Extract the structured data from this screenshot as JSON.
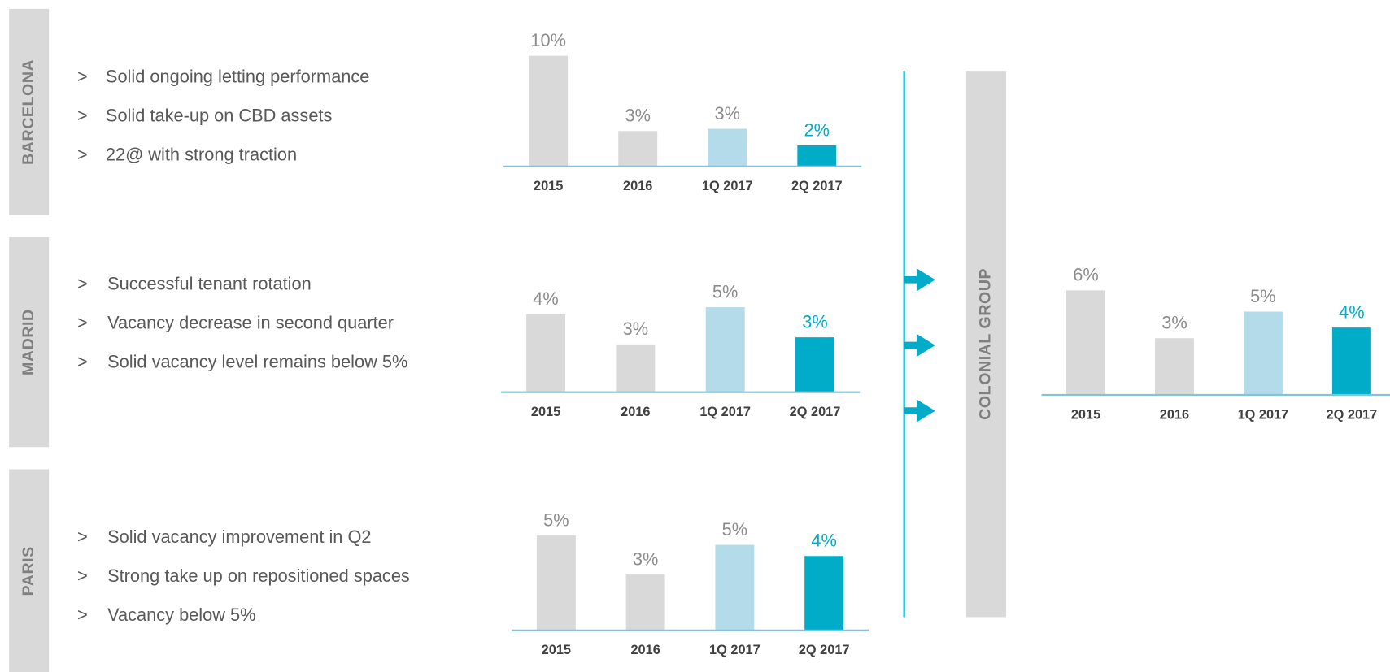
{
  "chart_data": [
    {
      "type": "bar",
      "title": "BARCELONA",
      "notes": [
        "Solid ongoing letting performance",
        "Solid take-up on CBD assets",
        "22@ with strong traction"
      ],
      "categories": [
        "2015",
        "2016",
        "1Q 2017",
        "2Q 2017"
      ],
      "values": [
        10,
        3.2,
        3.4,
        1.9
      ],
      "value_labels": [
        "10%",
        "3%",
        "3%",
        "2%"
      ],
      "colors": [
        "#d9d9d9",
        "#d9d9d9",
        "#b3dbe9",
        "#00acc8"
      ],
      "label_colors": [
        "#8c8c8c",
        "#8c8c8c",
        "#8c8c8c",
        "#00acc8"
      ],
      "ylim": [
        0,
        10
      ]
    },
    {
      "type": "bar",
      "title": "MADRID",
      "notes": [
        "Successful tenant rotation",
        "Vacancy decrease in second quarter",
        "Solid vacancy level remains below 5%"
      ],
      "categories": [
        "2015",
        "2016",
        "1Q 2017",
        "2Q 2017"
      ],
      "values": [
        4.4,
        2.7,
        4.8,
        3.1
      ],
      "value_labels": [
        "4%",
        "3%",
        "5%",
        "3%"
      ],
      "colors": [
        "#d9d9d9",
        "#d9d9d9",
        "#b3dbe9",
        "#00acc8"
      ],
      "label_colors": [
        "#8c8c8c",
        "#8c8c8c",
        "#8c8c8c",
        "#00acc8"
      ],
      "ylim": [
        0,
        5
      ]
    },
    {
      "type": "bar",
      "title": "PARIS",
      "notes": [
        "Solid vacancy improvement in Q2",
        "Strong take up on repositioned spaces",
        "Vacancy below 5%"
      ],
      "categories": [
        "2015",
        "2016",
        "1Q 2017",
        "2Q 2017"
      ],
      "values": [
        5.1,
        3.0,
        4.6,
        4.0
      ],
      "value_labels": [
        "5%",
        "3%",
        "5%",
        "4%"
      ],
      "colors": [
        "#d9d9d9",
        "#d9d9d9",
        "#b3dbe9",
        "#00acc8"
      ],
      "label_colors": [
        "#8c8c8c",
        "#8c8c8c",
        "#8c8c8c",
        "#00acc8"
      ],
      "ylim": [
        0,
        5
      ]
    },
    {
      "type": "bar",
      "title": "COLONIAL GROUP",
      "categories": [
        "2015",
        "2016",
        "1Q 2017",
        "2Q 2017"
      ],
      "values": [
        5.9,
        3.2,
        4.7,
        3.8
      ],
      "value_labels": [
        "6%",
        "3%",
        "5%",
        "4%"
      ],
      "colors": [
        "#d9d9d9",
        "#d9d9d9",
        "#b3dbe9",
        "#00acc8"
      ],
      "label_colors": [
        "#8c8c8c",
        "#8c8c8c",
        "#8c8c8c",
        "#00acc8"
      ],
      "ylim": [
        0,
        6
      ]
    }
  ]
}
